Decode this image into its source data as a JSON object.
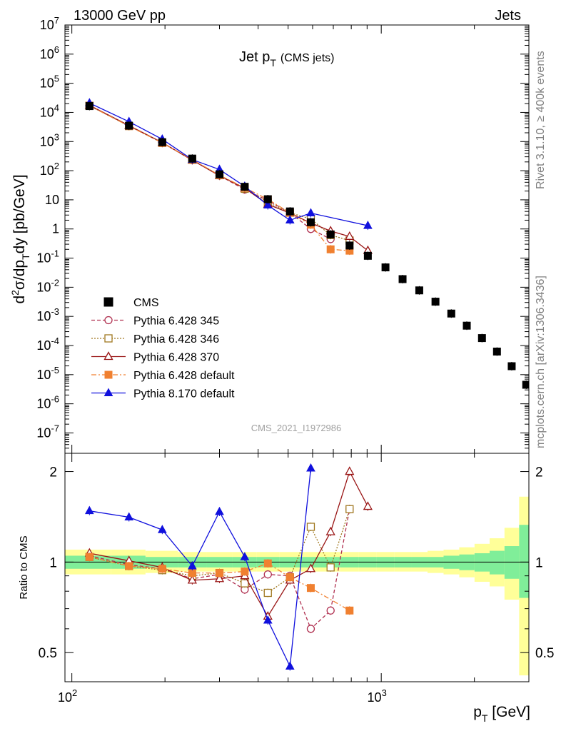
{
  "header": {
    "left": "13000 GeV pp",
    "right": "Jets"
  },
  "side": {
    "top": "Rivet 3.1.10, ≥ 400k events",
    "bottom": "mcplots.cern.ch [arXiv:1306.3436]"
  },
  "watermark": "CMS_2021_I1972986",
  "chart_data": [
    {
      "type": "scatter",
      "title_main": "Jet p",
      "title_sub": "T",
      "title_paren": "(CMS jets)",
      "ylabel": "d²σ/dp_T dy [pb/GeV]",
      "xscale": "log",
      "yscale": "log",
      "xlim": [
        95,
        3000
      ],
      "ylim": [
        2e-08,
        10000000.0
      ],
      "ytick_labels": [
        "10^-7",
        "10^-6",
        "10^-5",
        "10^-4",
        "10^-3",
        "10^-2",
        "10^-1",
        "1",
        "10",
        "10^2",
        "10^3",
        "10^4",
        "10^5",
        "10^6",
        "10^7"
      ],
      "legend_position": "bottom-left",
      "series": [
        {
          "name": "CMS",
          "color": "#000000",
          "marker": "square-filled",
          "line": "none",
          "x": [
            114,
            153,
            196,
            245,
            300,
            362,
            430,
            507,
            592,
            686,
            790,
            905,
            1032,
            1172,
            1327,
            1497,
            1684,
            1890,
            2116,
            2366,
            2640,
            2941
          ],
          "y": [
            16500,
            3500,
            950,
            260,
            75,
            28,
            10.5,
            4.0,
            1.7,
            0.65,
            0.27,
            0.12,
            0.048,
            0.019,
            0.0078,
            0.0032,
            0.00125,
            0.00048,
            0.00018,
            6.2e-05,
            1.95e-05,
            4.5e-06
          ]
        },
        {
          "name": "Pythia 6.428 345",
          "color": "#b03050",
          "marker": "circle-open",
          "line": "dashed",
          "x": [
            114,
            153,
            196,
            245,
            300,
            362,
            430,
            507,
            592,
            686
          ],
          "y": [
            17000,
            3500,
            900,
            230,
            68,
            22.5,
            9.5,
            3.6,
            1.0,
            0.45
          ]
        },
        {
          "name": "Pythia 6.428 346",
          "color": "#a07820",
          "marker": "square-open",
          "line": "dotted",
          "x": [
            114,
            153,
            196,
            245,
            300,
            362,
            430,
            507,
            592,
            686,
            790
          ],
          "y": [
            17000,
            3400,
            900,
            235,
            70,
            24,
            8.3,
            3.6,
            2.2,
            0.62,
            0.4
          ]
        },
        {
          "name": "Pythia 6.428 370",
          "color": "#991515",
          "marker": "triangle-open",
          "line": "solid",
          "x": [
            114,
            153,
            196,
            245,
            300,
            362,
            430,
            507,
            592,
            686,
            790,
            905
          ],
          "y": [
            17500,
            3550,
            920,
            230,
            67,
            25,
            7.0,
            3.5,
            1.6,
            0.85,
            0.55,
            0.18
          ]
        },
        {
          "name": "Pythia 6.428 default",
          "color": "#f08030",
          "marker": "square-filled",
          "line": "dashdot",
          "x": [
            114,
            153,
            196,
            245,
            300,
            362,
            430,
            507,
            592,
            686,
            790
          ],
          "y": [
            17000,
            3400,
            900,
            240,
            70,
            26,
            10.4,
            3.6,
            1.4,
            0.2,
            0.18
          ]
        },
        {
          "name": "Pythia 8.170 default",
          "color": "#1010dd",
          "marker": "triangle-filled",
          "line": "solid",
          "x": [
            114,
            153,
            196,
            245,
            300,
            362,
            430,
            507,
            592,
            905
          ],
          "y": [
            21000,
            4800,
            1200,
            240,
            110,
            29,
            6.5,
            2.0,
            3.5,
            1.3
          ]
        }
      ]
    },
    {
      "type": "scatter",
      "xlabel": "p_T [GeV]",
      "ylabel": "Ratio to CMS",
      "xscale": "log",
      "yscale": "log",
      "xlim": [
        95,
        3000
      ],
      "ylim": [
        0.4,
        2.3
      ],
      "xtick_labels": [
        "10^2",
        "10^3"
      ],
      "ytick_labels": [
        "0.5",
        "1",
        "2"
      ],
      "reference_line": 1,
      "band_colors": {
        "inner": "#80ee99",
        "outer": "#ffff99"
      },
      "bands": {
        "edges": [
          95,
          134,
          173,
          220,
          272,
          330,
          395,
          468,
          549,
          638,
          737,
          846,
          967,
          1101,
          1249,
          1411,
          1590,
          1787,
          2002,
          2240,
          2502,
          2790,
          3000
        ],
        "inner_lo": [
          0.95,
          0.95,
          0.96,
          0.96,
          0.96,
          0.96,
          0.96,
          0.96,
          0.96,
          0.96,
          0.96,
          0.96,
          0.96,
          0.96,
          0.96,
          0.96,
          0.95,
          0.94,
          0.93,
          0.91,
          0.88,
          0.76
        ],
        "inner_hi": [
          1.05,
          1.05,
          1.04,
          1.04,
          1.04,
          1.04,
          1.04,
          1.04,
          1.04,
          1.04,
          1.04,
          1.04,
          1.04,
          1.04,
          1.04,
          1.04,
          1.05,
          1.06,
          1.07,
          1.09,
          1.13,
          1.33
        ],
        "outer_lo": [
          0.91,
          0.91,
          0.92,
          0.93,
          0.93,
          0.93,
          0.93,
          0.93,
          0.93,
          0.93,
          0.93,
          0.93,
          0.93,
          0.93,
          0.93,
          0.92,
          0.91,
          0.89,
          0.86,
          0.83,
          0.75,
          0.42
        ],
        "outer_hi": [
          1.1,
          1.1,
          1.09,
          1.08,
          1.08,
          1.08,
          1.08,
          1.08,
          1.08,
          1.08,
          1.08,
          1.08,
          1.08,
          1.08,
          1.08,
          1.09,
          1.1,
          1.12,
          1.15,
          1.2,
          1.3,
          1.65
        ]
      },
      "series": [
        {
          "name": "Pythia 6.428 345",
          "color": "#b03050",
          "marker": "circle-open",
          "line": "dashed",
          "x": [
            114,
            153,
            196,
            245,
            300,
            362,
            430,
            507,
            592,
            686,
            790
          ],
          "y": [
            1.05,
            0.98,
            0.95,
            0.88,
            0.91,
            0.81,
            0.91,
            0.9,
            0.6,
            0.69,
            1.5
          ]
        },
        {
          "name": "Pythia 6.428 346",
          "color": "#a07820",
          "marker": "square-open",
          "line": "dotted",
          "x": [
            114,
            153,
            196,
            245,
            300,
            362,
            430,
            507,
            592,
            686,
            790
          ],
          "y": [
            1.04,
            0.97,
            0.94,
            0.9,
            0.92,
            0.85,
            0.79,
            0.89,
            1.31,
            0.96,
            1.5
          ]
        },
        {
          "name": "Pythia 6.428 370",
          "color": "#991515",
          "marker": "triangle-open",
          "line": "solid",
          "x": [
            114,
            153,
            196,
            245,
            300,
            362,
            430,
            507,
            592,
            686,
            790,
            905
          ],
          "y": [
            1.07,
            1.01,
            0.96,
            0.87,
            0.88,
            0.9,
            0.66,
            0.87,
            0.95,
            1.26,
            2.0,
            1.53
          ]
        },
        {
          "name": "Pythia 6.428 default",
          "color": "#f08030",
          "marker": "square-filled",
          "line": "dashdot",
          "x": [
            114,
            153,
            196,
            245,
            300,
            362,
            430,
            507,
            592,
            790
          ],
          "y": [
            1.04,
            0.97,
            0.95,
            0.92,
            0.92,
            0.93,
            0.99,
            0.89,
            0.82,
            0.69
          ]
        },
        {
          "name": "Pythia 8.170 default",
          "color": "#1010dd",
          "marker": "triangle-filled",
          "line": "solid",
          "x": [
            114,
            153,
            196,
            245,
            300,
            362,
            430,
            507,
            592
          ],
          "y": [
            1.48,
            1.41,
            1.28,
            0.97,
            1.47,
            1.04,
            0.64,
            0.45,
            2.05
          ]
        }
      ]
    }
  ]
}
